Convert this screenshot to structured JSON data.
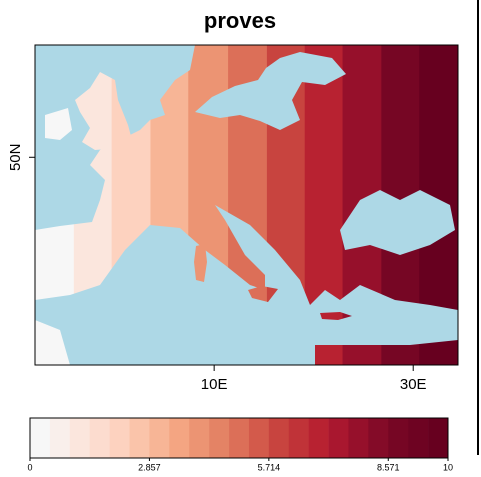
{
  "chart_data": {
    "type": "map",
    "title": "proves",
    "xlim": [
      -8,
      34.5
    ],
    "ylim": [
      31.5,
      60
    ],
    "xticks": [
      {
        "value": 10,
        "label": "10E"
      },
      {
        "value": 30,
        "label": "30E"
      }
    ],
    "yticks": [
      {
        "value": 50,
        "label": "50N"
      }
    ],
    "lon_breaks": [
      -8,
      -4.1,
      -0.3,
      3.6,
      7.4,
      11.4,
      15.3,
      19.1,
      22.9,
      26.8,
      30.6,
      34.5
    ],
    "values": [
      0.2,
      1.2,
      2.1,
      3,
      3.9,
      4.9,
      5.8,
      6.7,
      7.7,
      8.6,
      9.6
    ],
    "sea_color": "#add8e6",
    "colorbar": {
      "lim": [
        0,
        10
      ],
      "ticks": [
        0,
        2.857,
        5.714,
        8.571,
        10
      ],
      "colors": [
        "#f7f7f7",
        "#f9efeb",
        "#fbe6dd",
        "#fcdccf",
        "#fdd2bf",
        "#fac4aa",
        "#f7b596",
        "#f4a582",
        "#ec9473",
        "#e48365",
        "#dc6f58",
        "#d35a4b",
        "#c8443f",
        "#c03338",
        "#b82231",
        "#a9172f",
        "#96102b",
        "#840b28",
        "#760624",
        "#6e0322",
        "#67001f"
      ]
    }
  }
}
